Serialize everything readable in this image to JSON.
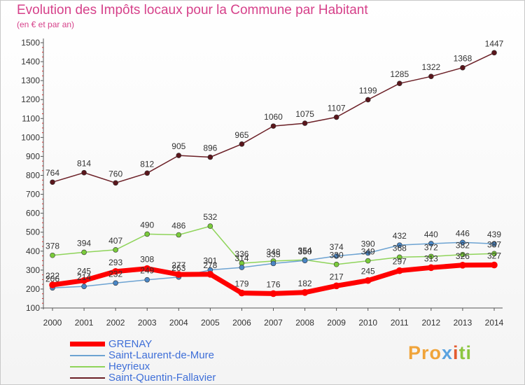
{
  "header": {
    "title": "Evolution des Impôts locaux pour la Commune par Habitant",
    "subtitle": "(en € et par an)"
  },
  "brand": {
    "part1": "Pro",
    "part2": "x",
    "part3": "i",
    "part4": "ti"
  },
  "chart_data": {
    "type": "line",
    "title": "Evolution des Impôts locaux pour la Commune par Habitant",
    "subtitle": "(en € et par an)",
    "xlabel": "",
    "ylabel": "",
    "x": [
      2000,
      2001,
      2002,
      2003,
      2004,
      2005,
      2006,
      2007,
      2008,
      2009,
      2010,
      2011,
      2012,
      2013,
      2014
    ],
    "ylim": [
      100,
      1500
    ],
    "yticks": [
      100,
      200,
      300,
      400,
      500,
      600,
      700,
      800,
      900,
      1000,
      1100,
      1200,
      1300,
      1400,
      1500
    ],
    "grid": false,
    "legend_position": "bottom-left",
    "series": [
      {
        "name": "GRENAY",
        "color": "#ff0000",
        "values": [
          222,
          245,
          293,
          308,
          277,
          278,
          179,
          176,
          182,
          217,
          245,
          297,
          313,
          326,
          327
        ]
      },
      {
        "name": "Saint-Laurent-de-Mure",
        "color": "#6da3d2",
        "values": [
          206,
          214,
          232,
          249,
          263,
          301,
          314,
          335,
          350,
          374,
          390,
          432,
          440,
          446,
          439
        ]
      },
      {
        "name": "Heyrieux",
        "color": "#8fd45a",
        "values": [
          378,
          394,
          407,
          490,
          486,
          532,
          336,
          348,
          354,
          330,
          349,
          368,
          372,
          382,
          387
        ]
      },
      {
        "name": "Saint-Quentin-Fallavier",
        "color": "#6b1f26",
        "values": [
          764,
          814,
          760,
          812,
          905,
          896,
          965,
          1060,
          1075,
          1107,
          1199,
          1285,
          1322,
          1368,
          1447
        ]
      }
    ]
  }
}
